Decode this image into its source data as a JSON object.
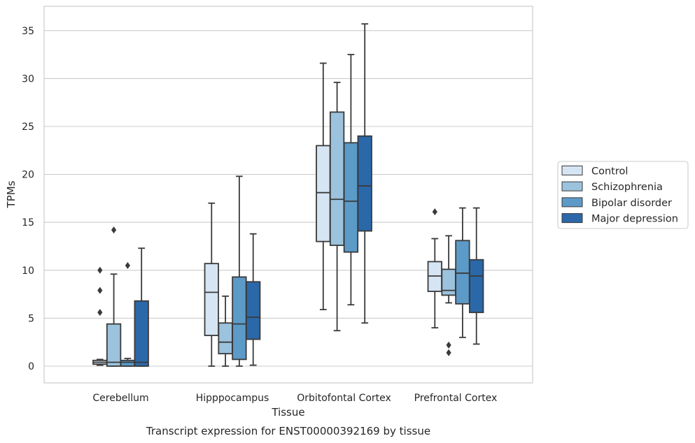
{
  "chart_data": {
    "type": "boxplot",
    "title": "Transcript expression for ENST00000392169 by tissue",
    "xlabel": "Tissue",
    "ylabel": "TPMs",
    "ylim": [
      -1.7,
      37.5
    ],
    "yticks": [
      0,
      5,
      10,
      15,
      20,
      25,
      30,
      35
    ],
    "grid": "horizontal",
    "legend_position": "right",
    "categories": [
      "Cerebellum",
      "Hipppocampus",
      "Orbitofontal Cortex",
      "Prefrontal Cortex"
    ],
    "series": [
      {
        "name": "Control",
        "color": "#d6e5f3",
        "boxes": [
          {
            "whisker_low": 0.1,
            "q1": 0.2,
            "median": 0.4,
            "q3": 0.6,
            "whisker_high": 0.7,
            "outliers": [
              5.6,
              7.9,
              10.0
            ]
          },
          {
            "whisker_low": 0.0,
            "q1": 3.2,
            "median": 7.7,
            "q3": 10.7,
            "whisker_high": 17.0,
            "outliers": []
          },
          {
            "whisker_low": 5.9,
            "q1": 13.0,
            "median": 18.1,
            "q3": 23.0,
            "whisker_high": 31.6,
            "outliers": []
          },
          {
            "whisker_low": 4.0,
            "q1": 7.8,
            "median": 9.4,
            "q3": 10.9,
            "whisker_high": 13.3,
            "outliers": [
              16.1
            ]
          }
        ]
      },
      {
        "name": "Schizophrenia",
        "color": "#9cc3de",
        "boxes": [
          {
            "whisker_low": 0.0,
            "q1": 0.0,
            "median": 0.4,
            "q3": 4.4,
            "whisker_high": 9.6,
            "outliers": [
              14.2
            ]
          },
          {
            "whisker_low": 0.0,
            "q1": 1.3,
            "median": 2.5,
            "q3": 4.5,
            "whisker_high": 7.3,
            "outliers": []
          },
          {
            "whisker_low": 3.7,
            "q1": 12.6,
            "median": 17.4,
            "q3": 26.5,
            "whisker_high": 29.6,
            "outliers": []
          },
          {
            "whisker_low": 6.6,
            "q1": 7.4,
            "median": 7.9,
            "q3": 10.1,
            "whisker_high": 13.6,
            "outliers": [
              1.4,
              2.2
            ]
          }
        ]
      },
      {
        "name": "Bipolar disorder",
        "color": "#5c9ac8",
        "boxes": [
          {
            "whisker_low": 0.0,
            "q1": 0.0,
            "median": 0.4,
            "q3": 0.6,
            "whisker_high": 0.8,
            "outliers": [
              10.5
            ]
          },
          {
            "whisker_low": 0.0,
            "q1": 0.7,
            "median": 4.4,
            "q3": 9.3,
            "whisker_high": 19.8,
            "outliers": []
          },
          {
            "whisker_low": 6.4,
            "q1": 11.9,
            "median": 17.2,
            "q3": 23.3,
            "whisker_high": 32.5,
            "outliers": []
          },
          {
            "whisker_low": 3.0,
            "q1": 6.5,
            "median": 9.7,
            "q3": 13.1,
            "whisker_high": 16.5,
            "outliers": []
          }
        ]
      },
      {
        "name": "Major depression",
        "color": "#2b68a9",
        "boxes": [
          {
            "whisker_low": 0.0,
            "q1": 0.0,
            "median": 0.4,
            "q3": 6.8,
            "whisker_high": 12.3,
            "outliers": []
          },
          {
            "whisker_low": 0.1,
            "q1": 2.8,
            "median": 5.1,
            "q3": 8.8,
            "whisker_high": 13.8,
            "outliers": []
          },
          {
            "whisker_low": 4.5,
            "q1": 14.1,
            "median": 18.8,
            "q3": 24.0,
            "whisker_high": 35.7,
            "outliers": []
          },
          {
            "whisker_low": 2.3,
            "q1": 5.6,
            "median": 9.4,
            "q3": 11.1,
            "whisker_high": 16.5,
            "outliers": []
          }
        ]
      }
    ]
  }
}
